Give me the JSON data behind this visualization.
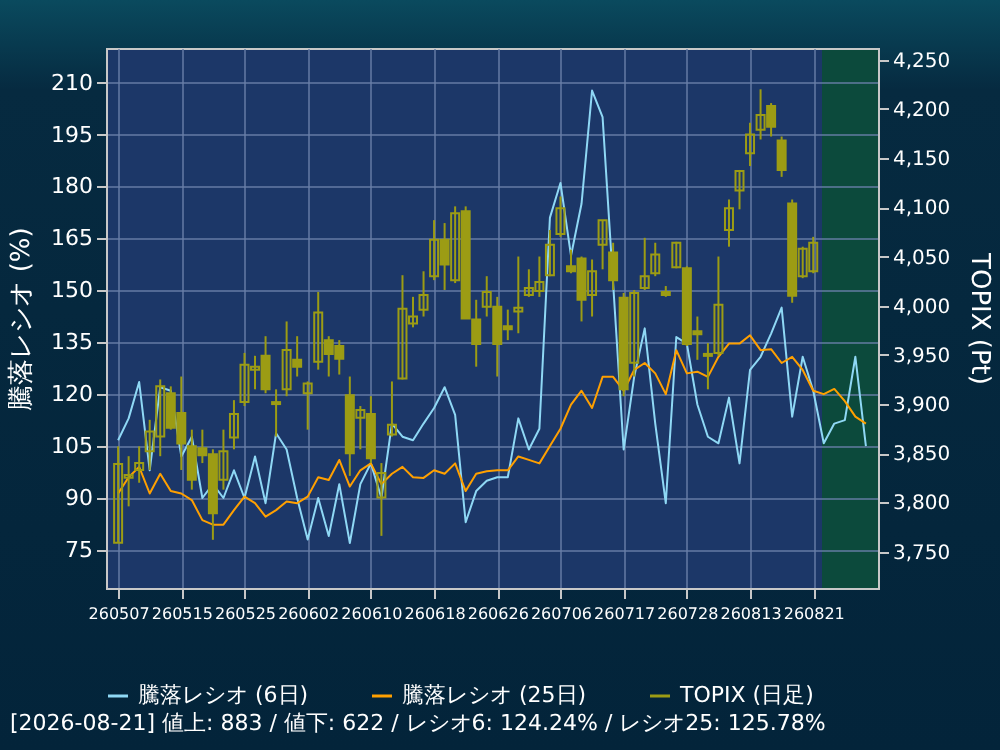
{
  "chart_data": {
    "type": "candlestick",
    "ylabel": "騰落レシオ (%)",
    "y2label": "TOPIX (Pt)",
    "categories": [
      "260507",
      null,
      null,
      null,
      null,
      null,
      "260515",
      null,
      null,
      null,
      null,
      null,
      "260525",
      null,
      null,
      null,
      null,
      null,
      "260602",
      null,
      null,
      null,
      null,
      null,
      "260610",
      null,
      null,
      null,
      null,
      null,
      "260618",
      null,
      null,
      null,
      null,
      null,
      "260626",
      null,
      null,
      null,
      null,
      null,
      "260706",
      null,
      null,
      null,
      null,
      null,
      "260717",
      null,
      null,
      null,
      null,
      null,
      "260728",
      null,
      null,
      null,
      null,
      null,
      "260813",
      null,
      null,
      null,
      null,
      null,
      "260821",
      null,
      null,
      null,
      null,
      null
    ],
    "ylim": [
      64,
      220
    ],
    "yticks": [
      75,
      90,
      105,
      120,
      135,
      150,
      165,
      180,
      195,
      210
    ],
    "y2lim": [
      3713,
      4262
    ],
    "y2ticks": [
      {
        "value": 3750,
        "label": "3,750"
      },
      {
        "value": 3800,
        "label": "3,800"
      },
      {
        "value": 3850,
        "label": "3,850"
      },
      {
        "value": 3900,
        "label": "3,900"
      },
      {
        "value": 3950,
        "label": "3,950"
      },
      {
        "value": 4000,
        "label": "4,000"
      },
      {
        "value": 4050,
        "label": "4,050"
      },
      {
        "value": 4100,
        "label": "4,100"
      },
      {
        "value": 4150,
        "label": "4,150"
      },
      {
        "value": 4200,
        "label": "4,200"
      },
      {
        "value": 4250,
        "label": "4,250"
      }
    ],
    "grid": true,
    "legend": "bottom",
    "annotations": [
      "[2026-08-21]  値上: 883 / 値下: 622 / レシオ6: 124.24% / レシオ25: 125.78%"
    ],
    "series": [
      {
        "name": "騰落レシオ (6日)",
        "type": "line",
        "color": "#8fd8f5",
        "values": [
          106.7,
          113,
          123.5,
          98,
          122,
          121,
          102,
          107.7,
          90,
          94,
          90,
          98,
          90,
          102,
          88.5,
          108.7,
          104,
          90,
          78,
          90,
          79,
          94,
          77,
          94,
          100,
          90,
          111.5,
          107.7,
          106.7,
          111.5,
          116,
          122,
          114,
          83,
          92,
          95,
          96,
          96,
          113,
          104,
          110,
          171,
          181,
          160,
          175,
          207.7,
          200,
          152,
          104,
          125,
          139,
          111.5,
          88.5,
          136.5,
          134.6,
          117,
          107.7,
          105.8,
          119,
          100,
          127,
          130.8,
          137.5,
          145,
          113.5,
          130.8,
          121,
          105.8,
          111.5,
          112.5,
          130.8,
          105
        ]
      },
      {
        "name": "騰落レシオ (25日)",
        "type": "line",
        "color": "#ffa000",
        "values": [
          91.3,
          96,
          99,
          91.3,
          97,
          92,
          91.3,
          89.4,
          83.6,
          82.3,
          82.3,
          86.5,
          90.4,
          88.5,
          84.6,
          86.5,
          89,
          88.5,
          90.4,
          96,
          95.2,
          101,
          93.3,
          98,
          100,
          94,
          97,
          99,
          96,
          95.8,
          98,
          97,
          100,
          92,
          97,
          97.7,
          98,
          98,
          102,
          101,
          100,
          105,
          110,
          117,
          121,
          116,
          125,
          125,
          121,
          127,
          129,
          126,
          120,
          132.7,
          126,
          126.5,
          125,
          130.8,
          134.6,
          134.6,
          137,
          132.7,
          133,
          129,
          130.8,
          127,
          121,
          120,
          121.5,
          118,
          113.5,
          111.5
        ]
      },
      {
        "name": "TOPIX (日足)",
        "type": "candlestick",
        "axis": "y2",
        "color": "#9c9c14",
        "ohlc": [
          [
            3759,
            3857,
            3759,
            3839
          ],
          [
            3825,
            3847,
            3796,
            3828
          ],
          [
            3833,
            3857,
            3820,
            3840
          ],
          [
            3852,
            3884,
            3833,
            3872
          ],
          [
            3867,
            3925,
            3847,
            3918
          ],
          [
            3911,
            3918,
            3874,
            3876
          ],
          [
            3891,
            3928,
            3833,
            3860
          ],
          [
            3857,
            3874,
            3813,
            3823
          ],
          [
            3855,
            3874,
            3840,
            3848
          ],
          [
            3849,
            3854,
            3762,
            3789
          ],
          [
            3823,
            3874,
            3813,
            3852
          ],
          [
            3866,
            3904,
            3854,
            3890
          ],
          [
            3902,
            3952,
            3898,
            3940
          ],
          [
            3935,
            3949,
            3915,
            3938
          ],
          [
            3949,
            3969,
            3911,
            3915
          ],
          [
            3902,
            3915,
            3867,
            3900
          ],
          [
            3915,
            3984,
            3908,
            3955
          ],
          [
            3945,
            3969,
            3928,
            3938
          ],
          [
            3911,
            3923,
            3874,
            3921
          ],
          [
            3943,
            4014,
            3935,
            3993
          ],
          [
            3965,
            3969,
            3928,
            3951
          ],
          [
            3959,
            3965,
            3930,
            3946
          ],
          [
            3909,
            3928,
            3827,
            3850
          ],
          [
            3886,
            3898,
            3854,
            3894
          ],
          [
            3890,
            3908,
            3840,
            3845
          ],
          [
            3805,
            3840,
            3766,
            3830
          ],
          [
            3869,
            3923,
            3867,
            3879
          ],
          [
            3926,
            4031,
            3925,
            3997
          ],
          [
            3982,
            4009,
            3978,
            3989
          ],
          [
            3996,
            4035,
            3989,
            4011
          ],
          [
            4030,
            4087,
            4026,
            4067
          ],
          [
            4067,
            4084,
            4016,
            4042
          ],
          [
            4026,
            4101,
            4023,
            4094
          ],
          [
            4096,
            4101,
            3987,
            3987
          ],
          [
            3986,
            4006,
            3938,
            3961
          ],
          [
            3999,
            4030,
            3989,
            4014
          ],
          [
            3999,
            4009,
            3928,
            3961
          ],
          [
            3979,
            3996,
            3965,
            3976
          ],
          [
            3994,
            4050,
            3972,
            3998
          ],
          [
            4011,
            4037,
            4009,
            4018
          ],
          [
            4015,
            4050,
            4009,
            4024
          ],
          [
            4031,
            4077,
            4030,
            4062
          ],
          [
            4073,
            4111,
            4070,
            4099
          ],
          [
            4040,
            4057,
            4033,
            4035
          ],
          [
            4048,
            4050,
            3984,
            4006
          ],
          [
            4011,
            4047,
            3989,
            4035
          ],
          [
            4062,
            4087,
            4037,
            4087
          ],
          [
            4054,
            4064,
            4016,
            4026
          ],
          [
            4008,
            4013,
            3908,
            3915
          ],
          [
            3942,
            4016,
            3928,
            4013
          ],
          [
            4018,
            4069,
            4016,
            4030
          ],
          [
            4033,
            4064,
            4030,
            4052
          ],
          [
            4014,
            4020,
            4009,
            4011
          ],
          [
            4039,
            4065,
            4038,
            4064
          ],
          [
            4038,
            4040,
            3959,
            3961
          ],
          [
            3974,
            3989,
            3945,
            3971
          ],
          [
            3949,
            3962,
            3915,
            3951
          ],
          [
            3952,
            4050,
            3949,
            4001
          ],
          [
            4077,
            4108,
            4060,
            4099
          ],
          [
            4117,
            4138,
            4098,
            4137
          ],
          [
            4155,
            4186,
            4142,
            4174
          ],
          [
            4179,
            4220,
            4169,
            4194
          ],
          [
            4203,
            4206,
            4172,
            4182
          ],
          [
            4168,
            4172,
            4131,
            4138
          ],
          [
            4104,
            4108,
            4003,
            4010
          ],
          [
            4030,
            4060,
            4028,
            4058
          ],
          [
            4035,
            4070,
            4033,
            4064
          ],
          null,
          null,
          null,
          null,
          null
        ]
      }
    ]
  }
}
